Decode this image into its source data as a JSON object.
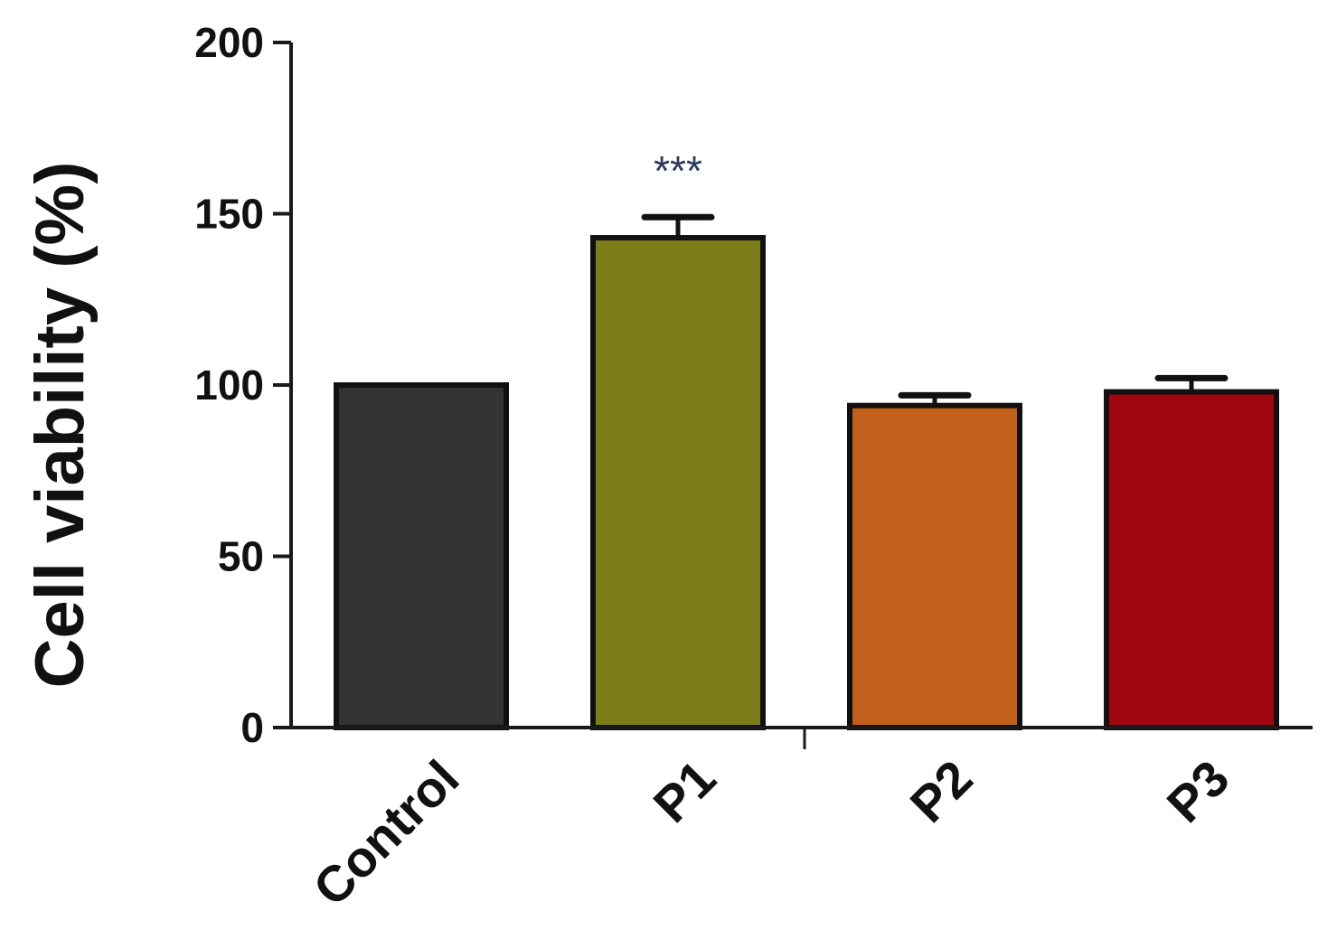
{
  "chart_data": {
    "type": "bar",
    "title": "",
    "xlabel": "",
    "ylabel": "Cell viability (%)",
    "ylim": [
      0,
      200
    ],
    "yticks": [
      0,
      50,
      100,
      150,
      200
    ],
    "grid": false,
    "categories": [
      "Control",
      "P1",
      "P2",
      "P3"
    ],
    "values": [
      100,
      143,
      94,
      98
    ],
    "errors": [
      0,
      6,
      3,
      4
    ],
    "colors": [
      "#333333",
      "#7c7e1c",
      "#c0601a",
      "#a00610"
    ],
    "annotations": [
      {
        "category": "P1",
        "text": "***"
      }
    ]
  }
}
